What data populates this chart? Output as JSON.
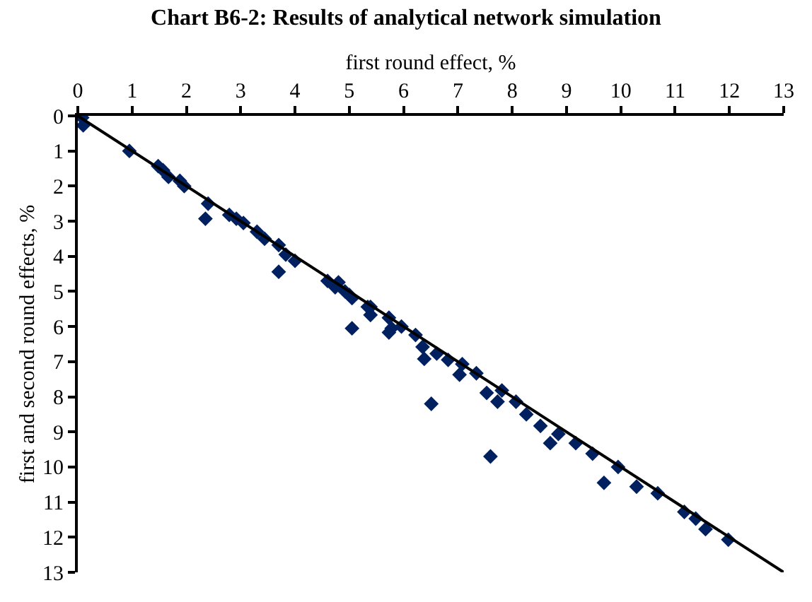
{
  "chart_data": {
    "type": "scatter",
    "title": "Chart B6-2: Results of analytical network simulation",
    "xlabel": "first round effect, %",
    "ylabel": "first and second round effects, %",
    "xlim": [
      0,
      13
    ],
    "xticks": [
      0,
      1,
      2,
      3,
      4,
      5,
      6,
      7,
      8,
      9,
      10,
      11,
      12,
      13
    ],
    "ylim": [
      13,
      0
    ],
    "yticks": [
      0,
      1,
      2,
      3,
      4,
      5,
      6,
      7,
      8,
      9,
      10,
      11,
      12,
      13
    ],
    "series": [
      {
        "color": "#002060",
        "marker": "diamond",
        "x": [
          0.08,
          0.1,
          0.95,
          1.48,
          1.57,
          1.67,
          1.88,
          1.96,
          2.4,
          2.35,
          2.79,
          2.92,
          3.05,
          3.3,
          3.44,
          3.7,
          3.7,
          3.83,
          4.0,
          4.6,
          4.74,
          4.8,
          4.92,
          5.0,
          5.05,
          5.05,
          5.34,
          5.39,
          5.39,
          5.73,
          5.73,
          5.78,
          5.96,
          6.22,
          6.35,
          6.38,
          6.51,
          6.61,
          6.82,
          7.03,
          7.08,
          7.34,
          7.53,
          7.6,
          7.73,
          7.81,
          8.07,
          8.26,
          8.52,
          8.7,
          8.85,
          9.17,
          9.48,
          9.69,
          9.95,
          10.29,
          10.68,
          11.17,
          11.38,
          11.56,
          11.98
        ],
        "values": [
          0.05,
          0.27,
          1.0,
          1.43,
          1.55,
          1.74,
          1.85,
          2.0,
          2.5,
          2.93,
          2.82,
          2.93,
          3.05,
          3.3,
          3.5,
          3.68,
          4.44,
          3.95,
          4.13,
          4.7,
          4.88,
          4.74,
          5.0,
          5.1,
          5.19,
          6.05,
          5.44,
          5.44,
          5.67,
          5.75,
          6.17,
          6.05,
          6.0,
          6.24,
          6.58,
          6.92,
          8.2,
          6.77,
          6.95,
          7.37,
          7.07,
          7.33,
          7.89,
          9.7,
          8.14,
          7.82,
          8.14,
          8.5,
          8.83,
          9.32,
          9.06,
          9.32,
          9.62,
          10.45,
          10.0,
          10.56,
          10.75,
          11.28,
          11.47,
          11.77,
          12.07
        ]
      },
      {
        "type": "line",
        "color": "#000000",
        "line_style": "solid",
        "marker": "none",
        "x": [
          0,
          13
        ],
        "values": [
          0,
          13
        ]
      }
    ]
  }
}
